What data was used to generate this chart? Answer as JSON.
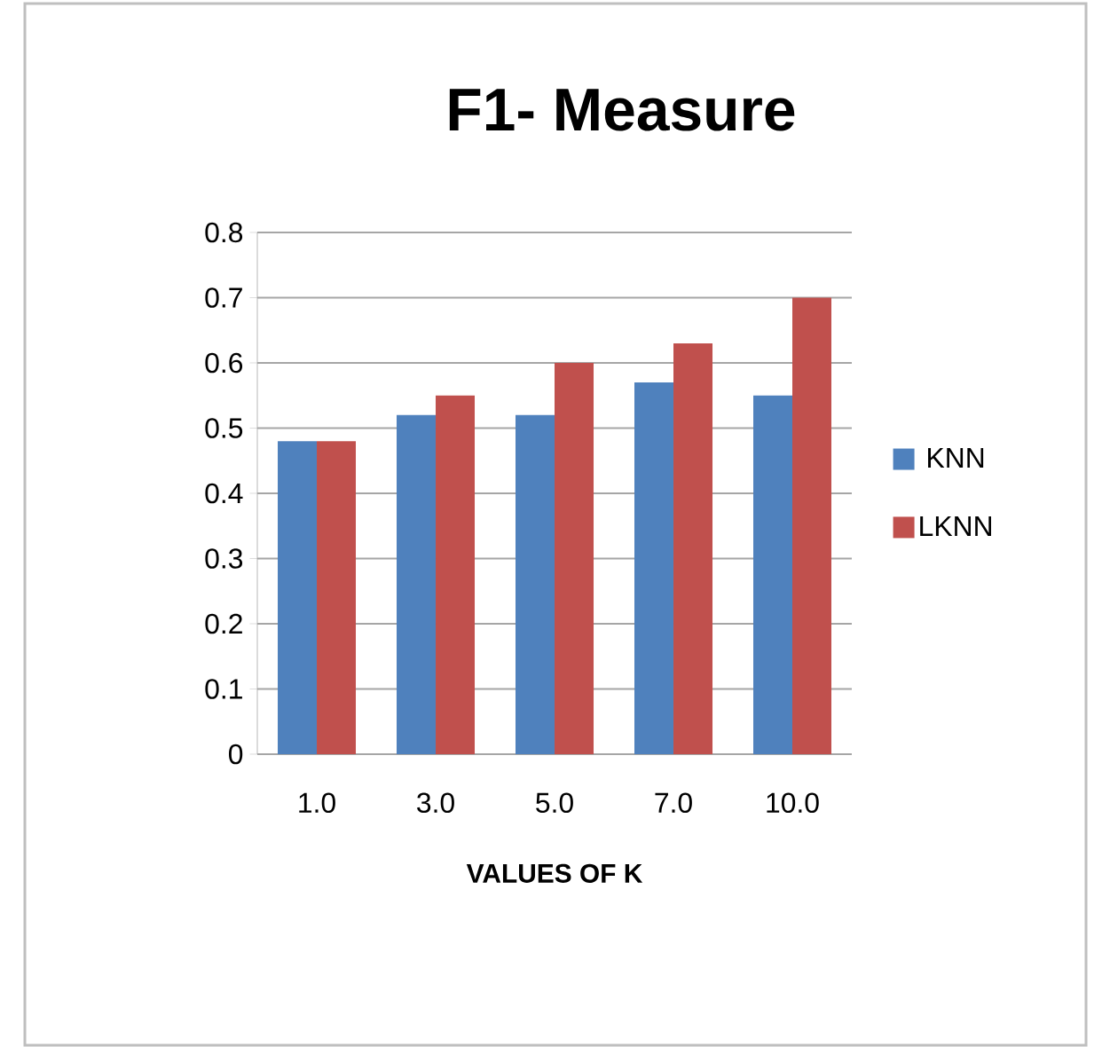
{
  "chart_data": {
    "type": "bar",
    "title": "F1- Measure",
    "xlabel": "VALUES OF K",
    "categories": [
      "1.0",
      "3.0",
      "5.0",
      "7.0",
      "10.0"
    ],
    "series": [
      {
        "name": "KNN",
        "color": "#4f81bd",
        "values": [
          0.48,
          0.52,
          0.52,
          0.57,
          0.55
        ]
      },
      {
        "name": "LKNN",
        "color": "#c0504d",
        "values": [
          0.48,
          0.55,
          0.6,
          0.63,
          0.7
        ]
      }
    ],
    "ylim": [
      0,
      0.8
    ],
    "yticks": [
      0,
      0.1,
      0.2,
      0.3,
      0.4,
      0.5,
      0.6,
      0.7,
      0.8
    ],
    "grid": "y",
    "legend": "right"
  }
}
